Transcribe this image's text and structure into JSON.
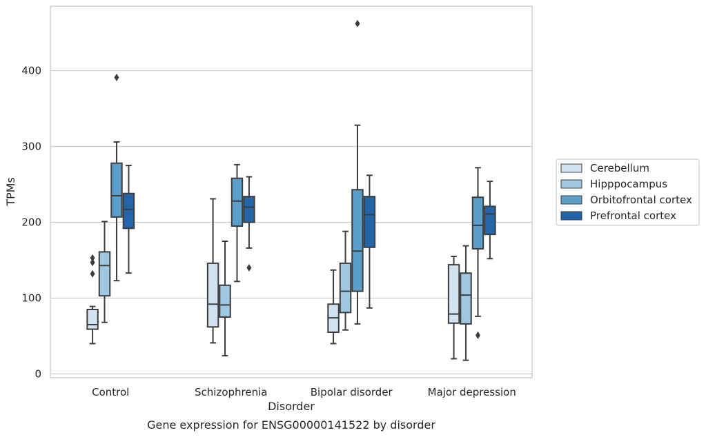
{
  "chart_data": {
    "type": "box",
    "xlabel": "Disorder",
    "ylabel": "TPMs",
    "caption": "Gene expression for ENSG00000141522 by disorder",
    "ylim": [
      -5,
      485
    ],
    "yticks": [
      0,
      100,
      200,
      300,
      400
    ],
    "grid": "horizontal",
    "legend_placement": "right",
    "categories": [
      "Control",
      "Schizophrenia",
      "Bipolar disorder",
      "Major depression"
    ],
    "series": [
      {
        "name": "Cerebellum",
        "color": "#d3e2f1",
        "boxes": [
          {
            "whisker_low": 40,
            "q1": 59,
            "median": 65,
            "q3": 85,
            "whisker_high": 89,
            "outliers": [
              132,
              147,
              153
            ]
          },
          {
            "whisker_low": 41,
            "q1": 62,
            "median": 92,
            "q3": 146,
            "whisker_high": 231,
            "outliers": []
          },
          {
            "whisker_low": 40,
            "q1": 55,
            "median": 74,
            "q3": 92,
            "whisker_high": 137,
            "outliers": []
          },
          {
            "whisker_low": 20,
            "q1": 67,
            "median": 79,
            "q3": 144,
            "whisker_high": 155,
            "outliers": []
          }
        ]
      },
      {
        "name": "Hipppocampus",
        "color": "#9fc7df",
        "boxes": [
          {
            "whisker_low": 68,
            "q1": 103,
            "median": 143,
            "q3": 161,
            "whisker_high": 201,
            "outliers": []
          },
          {
            "whisker_low": 24,
            "q1": 75,
            "median": 91,
            "q3": 117,
            "whisker_high": 175,
            "outliers": []
          },
          {
            "whisker_low": 58,
            "q1": 81,
            "median": 109,
            "q3": 146,
            "whisker_high": 188,
            "outliers": []
          },
          {
            "whisker_low": 18,
            "q1": 66,
            "median": 104,
            "q3": 133,
            "whisker_high": 169,
            "outliers": []
          }
        ]
      },
      {
        "name": "Orbitofrontal cortex",
        "color": "#5a9ec9",
        "boxes": [
          {
            "whisker_low": 123,
            "q1": 207,
            "median": 235,
            "q3": 278,
            "whisker_high": 306,
            "outliers": [
              391
            ]
          },
          {
            "whisker_low": 122,
            "q1": 195,
            "median": 228,
            "q3": 258,
            "whisker_high": 276,
            "outliers": []
          },
          {
            "whisker_low": 66,
            "q1": 109,
            "median": 162,
            "q3": 243,
            "whisker_high": 328,
            "outliers": [
              462
            ]
          },
          {
            "whisker_low": 76,
            "q1": 165,
            "median": 196,
            "q3": 233,
            "whisker_high": 272,
            "outliers": [
              51
            ]
          }
        ]
      },
      {
        "name": "Prefrontal cortex",
        "color": "#2464a8",
        "boxes": [
          {
            "whisker_low": 133,
            "q1": 192,
            "median": 217,
            "q3": 238,
            "whisker_high": 275,
            "outliers": []
          },
          {
            "whisker_low": 166,
            "q1": 200,
            "median": 220,
            "q3": 234,
            "whisker_high": 260,
            "outliers": [
              140
            ]
          },
          {
            "whisker_low": 87,
            "q1": 167,
            "median": 210,
            "q3": 234,
            "whisker_high": 262,
            "outliers": []
          },
          {
            "whisker_low": 152,
            "q1": 184,
            "median": 211,
            "q3": 221,
            "whisker_high": 254,
            "outliers": []
          }
        ]
      }
    ]
  }
}
